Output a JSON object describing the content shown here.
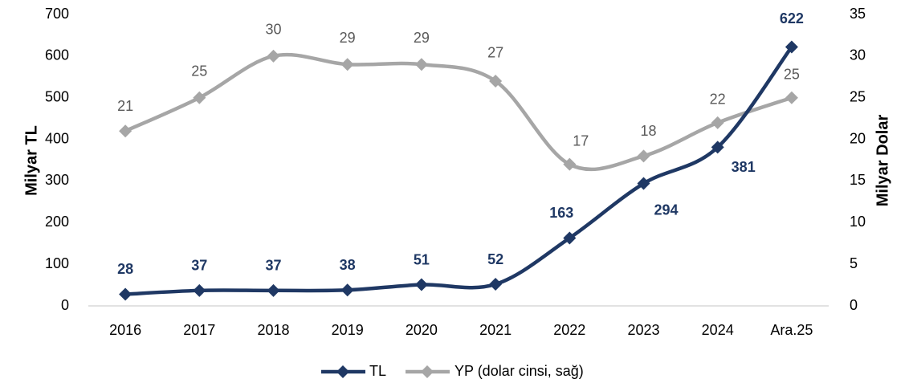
{
  "chart_data": {
    "type": "line",
    "categories": [
      "2016",
      "2017",
      "2018",
      "2019",
      "2020",
      "2021",
      "2022",
      "2023",
      "2024",
      "Ara.25"
    ],
    "series": [
      {
        "name": "TL",
        "color": "#1f3864",
        "values": [
          28,
          37,
          37,
          38,
          51,
          52,
          163,
          294,
          381,
          622
        ]
      },
      {
        "name": "YP (dolar cinsi, sağ)",
        "color": "#a6a6a6",
        "axis": "y2",
        "values": [
          21,
          25,
          30,
          29,
          29,
          27,
          17,
          18,
          22,
          25
        ]
      }
    ],
    "ylabel": "Milyar TL",
    "y2label": "Milyar Dolar",
    "ylim": [
      0,
      700
    ],
    "yticks": [
      0,
      100,
      200,
      300,
      400,
      500,
      600,
      700
    ],
    "y2lim": [
      0,
      35
    ],
    "y2ticks": [
      0,
      5,
      10,
      15,
      20,
      25,
      30,
      35
    ],
    "legend": "bottom",
    "grid": false
  }
}
